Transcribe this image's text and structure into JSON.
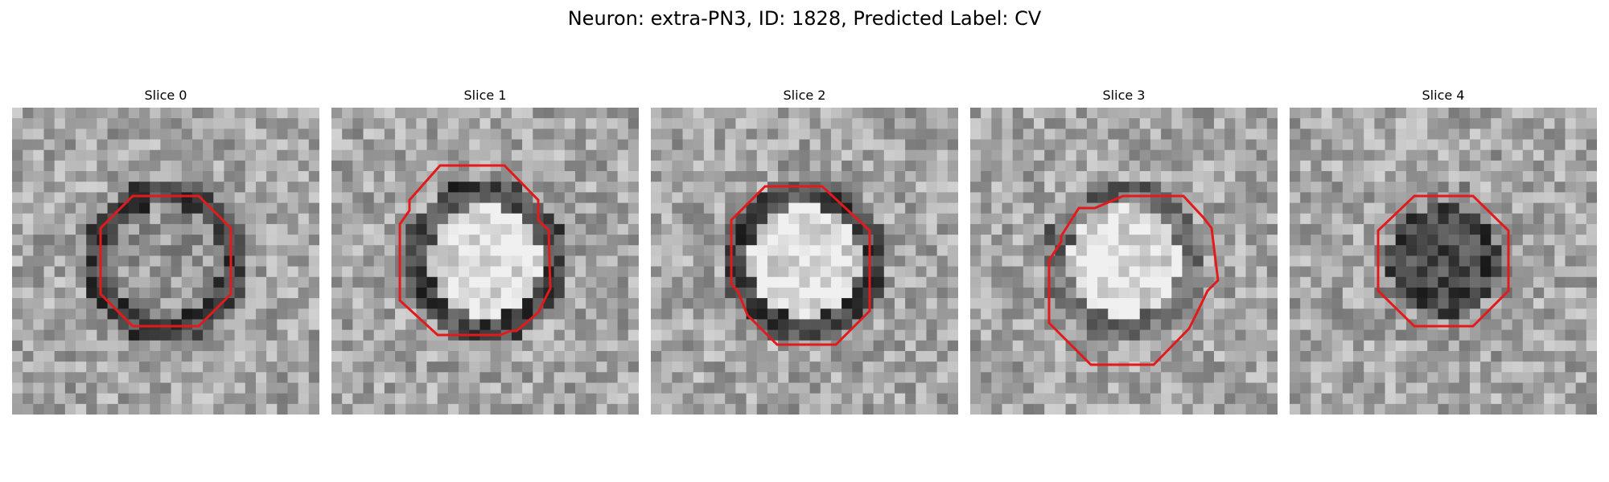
{
  "figure": {
    "title": "Neuron: extra-PN3, ID: 1828, Predicted Label: CV",
    "contour_color": "#e31a1c",
    "colormap": "grayscale"
  },
  "slices": [
    {
      "label": "Slice 0",
      "center_tone": "mid-gray",
      "ring_tone": "dark"
    },
    {
      "label": "Slice 1",
      "center_tone": "bright",
      "ring_tone": "dark"
    },
    {
      "label": "Slice 2",
      "center_tone": "bright",
      "ring_tone": "dark"
    },
    {
      "label": "Slice 3",
      "center_tone": "bright",
      "ring_tone": "mid-dark"
    },
    {
      "label": "Slice 4",
      "center_tone": "dark",
      "ring_tone": "mid-gray"
    }
  ]
}
